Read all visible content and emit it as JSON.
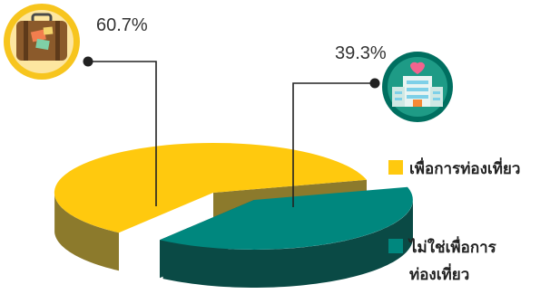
{
  "chart_data": {
    "type": "pie",
    "style": "3d-exploded",
    "title": "",
    "categories": [
      "เพื่อการท่องเที่ยว",
      "ไม่ใช่เพื่อการท่องเที่ยว"
    ],
    "values": [
      60.7,
      39.3
    ],
    "value_labels": [
      "60.7%",
      "39.3%"
    ],
    "colors": [
      "#FFC90E",
      "#00877E"
    ],
    "side_colors": [
      "#8C7A2C",
      "#0A4A45"
    ],
    "legend": {
      "placement": "right",
      "entries": [
        {
          "lines": [
            "เพื่อการท่องเที่ยว"
          ],
          "color": "#FFC90E"
        },
        {
          "lines": [
            "ไม่ใช่เพื่อการ",
            "ท่องเที่ยว"
          ],
          "color": "#00877E"
        }
      ]
    },
    "icons": [
      "suitcase-icon",
      "hospital-icon"
    ]
  }
}
